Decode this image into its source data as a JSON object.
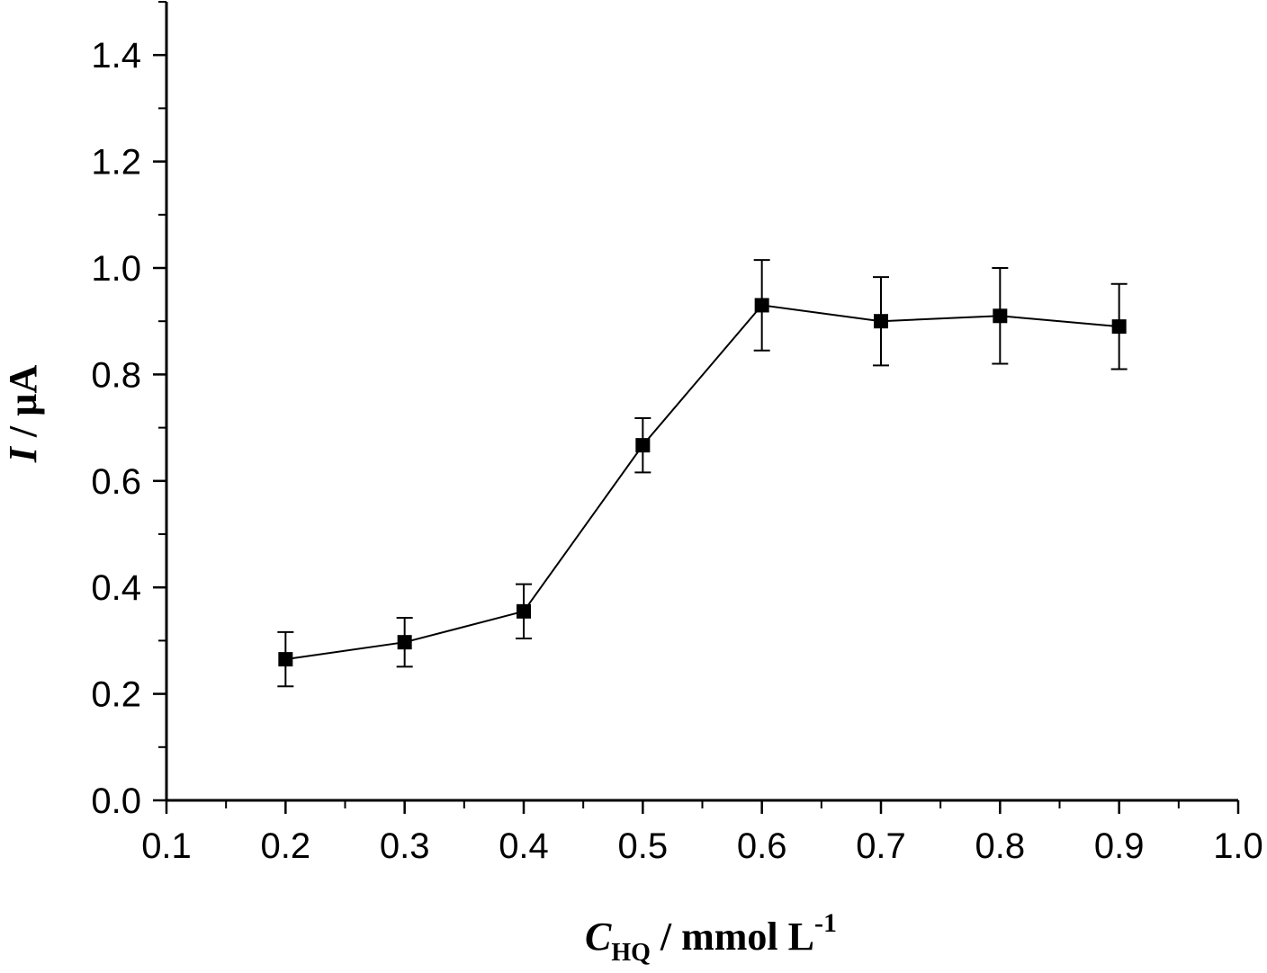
{
  "chart_data": {
    "type": "line",
    "series": [
      {
        "name": "I",
        "marker": "square",
        "x": [
          0.2,
          0.3,
          0.4,
          0.5,
          0.6,
          0.7,
          0.8,
          0.9
        ],
        "y": [
          0.265,
          0.297,
          0.355,
          0.667,
          0.93,
          0.9,
          0.91,
          0.89
        ],
        "error": [
          0.051,
          0.046,
          0.051,
          0.051,
          0.085,
          0.083,
          0.09,
          0.08
        ]
      }
    ],
    "xlim": [
      0.1,
      1.0
    ],
    "ylim": [
      0.0,
      1.5
    ],
    "xticks": [
      "0.1",
      "0.2",
      "0.3",
      "0.4",
      "0.5",
      "0.6",
      "0.7",
      "0.8",
      "0.9",
      "1.0"
    ],
    "yticks": [
      "0.0",
      "0.2",
      "0.4",
      "0.6",
      "0.8",
      "1.0",
      "1.2",
      "1.4"
    ],
    "xlabel": {
      "symbol": "C",
      "subscript": "HQ",
      "unit": " / mmol L",
      "superscript": "-1"
    },
    "ylabel": {
      "symbol": "I",
      "unit": " / µA"
    },
    "grid": false,
    "colors": {
      "line": "#000000",
      "marker": "#000000",
      "axis": "#000000"
    }
  }
}
